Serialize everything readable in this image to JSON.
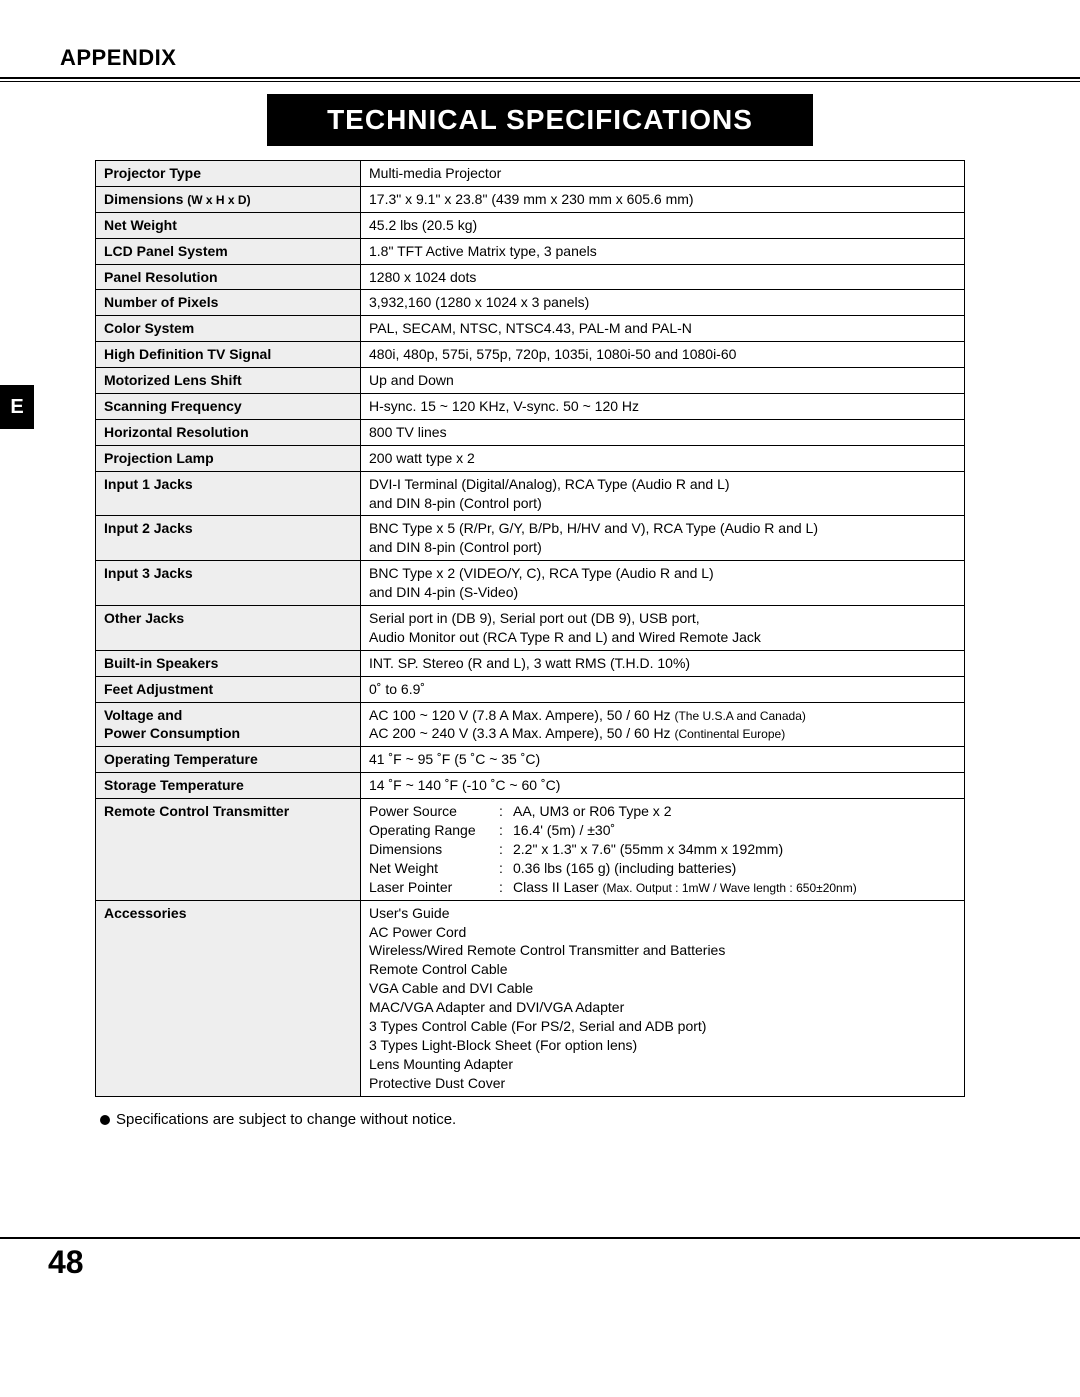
{
  "appendix_label": "APPENDIX",
  "banner_title": "TECHNICAL SPECIFICATIONS",
  "side_tab": "E",
  "footnote": "Specifications are subject to change without notice.",
  "page_number": "48",
  "specs": {
    "projector_type": {
      "label": "Projector Type",
      "value": "Multi-media Projector"
    },
    "dimensions": {
      "label": "Dimensions",
      "sublabel": "(W x H x D)",
      "value": "17.3\" x 9.1\" x 23.8\" (439 mm x 230 mm x 605.6 mm)"
    },
    "net_weight": {
      "label": "Net Weight",
      "value": "45.2 lbs (20.5 kg)"
    },
    "lcd_panel": {
      "label": "LCD Panel System",
      "value": "1.8\" TFT Active Matrix type, 3 panels"
    },
    "panel_res": {
      "label": "Panel Resolution",
      "value": "1280 x 1024 dots"
    },
    "num_pixels": {
      "label": "Number of Pixels",
      "value": "3,932,160 (1280 x 1024 x 3 panels)"
    },
    "color_system": {
      "label": "Color System",
      "value": "PAL, SECAM, NTSC, NTSC4.43, PAL-M and PAL-N"
    },
    "hdtv": {
      "label": "High Definition TV Signal",
      "value": "480i, 480p, 575i, 575p, 720p, 1035i, 1080i-50 and 1080i-60"
    },
    "lens_shift": {
      "label": "Motorized Lens Shift",
      "value": "Up and Down"
    },
    "scan_freq": {
      "label": "Scanning Frequency",
      "value": "H-sync. 15 ~ 120 KHz, V-sync. 50 ~ 120 Hz"
    },
    "h_res": {
      "label": "Horizontal Resolution",
      "value": "800 TV lines"
    },
    "lamp": {
      "label": "Projection Lamp",
      "value": "200 watt type x 2"
    },
    "input1": {
      "label": "Input 1 Jacks",
      "line1": "DVI-I Terminal (Digital/Analog), RCA Type (Audio R and L)",
      "line2": "and DIN 8-pin (Control port)"
    },
    "input2": {
      "label": "Input 2 Jacks",
      "line1": "BNC Type x 5 (R/Pr, G/Y, B/Pb, H/HV and V), RCA Type (Audio R and L)",
      "line2": "and DIN 8-pin (Control port)"
    },
    "input3": {
      "label": "Input 3 Jacks",
      "line1": "BNC Type x 2 (VIDEO/Y, C), RCA Type (Audio R and L)",
      "line2": "and DIN 4-pin (S-Video)"
    },
    "other_jacks": {
      "label": "Other Jacks",
      "line1": "Serial port in (DB 9), Serial port out (DB 9), USB port,",
      "line2": "Audio Monitor out (RCA Type R and L) and Wired Remote Jack"
    },
    "speakers": {
      "label": "Built-in Speakers",
      "value": "INT. SP. Stereo (R and L), 3 watt RMS (T.H.D. 10%)"
    },
    "feet": {
      "label": "Feet Adjustment",
      "value": "0˚ to 6.9˚"
    },
    "voltage": {
      "label1": "Voltage and",
      "label2": "Power Consumption",
      "line1a": "AC 100 ~ 120 V (7.8 A  Max. Ampere), 50 / 60 Hz ",
      "line1b": "(The U.S.A and Canada)",
      "line2a": "AC 200 ~ 240 V (3.3 A  Max. Ampere), 50 / 60 Hz ",
      "line2b": "(Continental Europe)"
    },
    "op_temp": {
      "label": "Operating Temperature",
      "value": "41 ˚F ~ 95 ˚F (5 ˚C ~ 35 ˚C)"
    },
    "storage_temp": {
      "label": "Storage Temperature",
      "value": "14 ˚F ~ 140 ˚F (-10 ˚C ~ 60 ˚C)"
    },
    "remote": {
      "label": "Remote Control Transmitter",
      "rows": [
        {
          "k": "Power Source",
          "v": "AA, UM3 or R06 Type x 2"
        },
        {
          "k": "Operating Range",
          "v": "16.4' (5m) / ±30˚"
        },
        {
          "k": "Dimensions",
          "v": "2.2\" x 1.3\" x 7.6\" (55mm x 34mm x 192mm)"
        },
        {
          "k": "Net Weight",
          "v": "0.36 lbs (165 g) (including batteries)"
        }
      ],
      "laser_k": "Laser Pointer",
      "laser_v1": "Class II Laser ",
      "laser_v2": "(Max. Output : 1mW / Wave length : 650±20nm)"
    },
    "accessories": {
      "label": "Accessories",
      "items": [
        "User's Guide",
        "AC Power Cord",
        "Wireless/Wired Remote Control Transmitter and Batteries",
        "Remote Control Cable",
        "VGA Cable and DVI Cable",
        "MAC/VGA Adapter and DVI/VGA Adapter",
        "3 Types Control Cable (For PS/2, Serial and ADB port)",
        "3 Types Light-Block Sheet (For option lens)",
        "Lens Mounting Adapter",
        "Protective Dust Cover"
      ]
    }
  }
}
